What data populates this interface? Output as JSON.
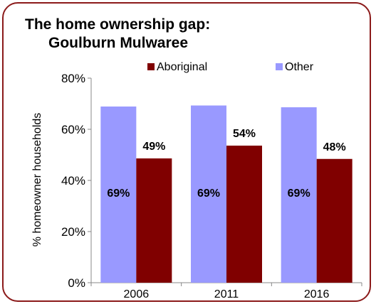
{
  "chart_data": {
    "type": "bar",
    "title_line1": "The home ownership gap:",
    "title_line2": "Goulburn Mulwaree",
    "xlabel": "",
    "ylabel": "% homeowner households",
    "categories": [
      "2006",
      "2011",
      "2016"
    ],
    "ylim": [
      0,
      80
    ],
    "yticks": [
      "0%",
      "20%",
      "40%",
      "60%",
      "80%"
    ],
    "series": [
      {
        "name": "Other",
        "color": "#9999ff",
        "values": [
          69,
          69,
          69
        ],
        "display_values": [
          68.9,
          69.3,
          68.6
        ],
        "labels": [
          "69%",
          "69%",
          "69%"
        ]
      },
      {
        "name": "Aboriginal",
        "color": "#800000",
        "values": [
          49,
          54,
          48
        ],
        "display_values": [
          48.6,
          53.6,
          48.4
        ],
        "labels": [
          "49%",
          "54%",
          "48%"
        ]
      }
    ],
    "legend_position": "top-right",
    "grid": false
  },
  "colors": {
    "frame": "#8b1a1a",
    "axis": "#888888"
  }
}
